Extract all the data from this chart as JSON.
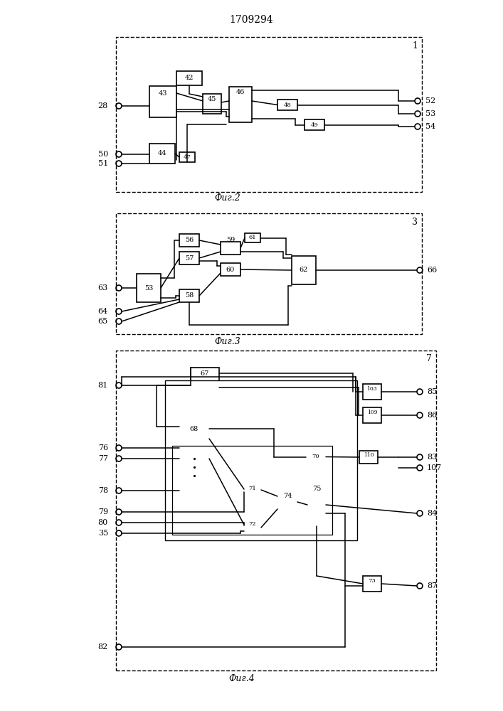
{
  "title": "1709294",
  "bg_color": "#ffffff",
  "caption1": "Фиг.2",
  "caption2": "Фиг.3",
  "caption3": "Фиг.4"
}
